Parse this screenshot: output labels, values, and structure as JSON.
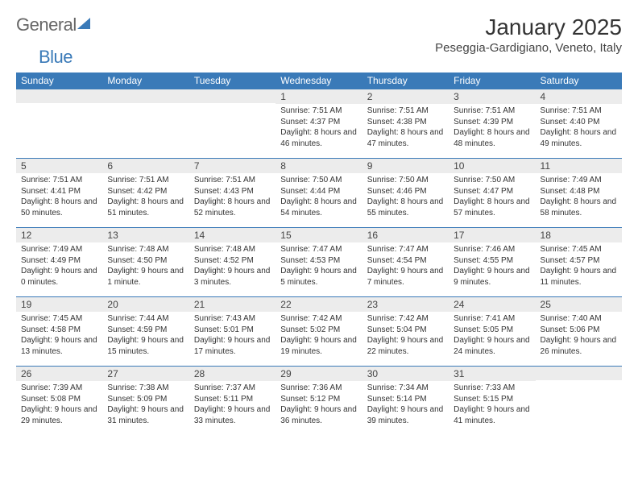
{
  "brand": {
    "part1": "General",
    "part2": "Blue"
  },
  "title": "January 2025",
  "location": "Peseggia-Gardigiano, Veneto, Italy",
  "colors": {
    "accent": "#3a7ab8",
    "row_shade": "#ececec",
    "text": "#333333",
    "background": "#ffffff"
  },
  "typography": {
    "title_fontsize": 28,
    "location_fontsize": 15,
    "header_fontsize": 12,
    "daynum_fontsize": 12,
    "body_fontsize": 10
  },
  "calendar": {
    "type": "table",
    "columns": [
      "Sunday",
      "Monday",
      "Tuesday",
      "Wednesday",
      "Thursday",
      "Friday",
      "Saturday"
    ],
    "weeks": [
      [
        null,
        null,
        null,
        {
          "n": "1",
          "sr": "7:51 AM",
          "ss": "4:37 PM",
          "dl": "8 hours and 46 minutes."
        },
        {
          "n": "2",
          "sr": "7:51 AM",
          "ss": "4:38 PM",
          "dl": "8 hours and 47 minutes."
        },
        {
          "n": "3",
          "sr": "7:51 AM",
          "ss": "4:39 PM",
          "dl": "8 hours and 48 minutes."
        },
        {
          "n": "4",
          "sr": "7:51 AM",
          "ss": "4:40 PM",
          "dl": "8 hours and 49 minutes."
        }
      ],
      [
        {
          "n": "5",
          "sr": "7:51 AM",
          "ss": "4:41 PM",
          "dl": "8 hours and 50 minutes."
        },
        {
          "n": "6",
          "sr": "7:51 AM",
          "ss": "4:42 PM",
          "dl": "8 hours and 51 minutes."
        },
        {
          "n": "7",
          "sr": "7:51 AM",
          "ss": "4:43 PM",
          "dl": "8 hours and 52 minutes."
        },
        {
          "n": "8",
          "sr": "7:50 AM",
          "ss": "4:44 PM",
          "dl": "8 hours and 54 minutes."
        },
        {
          "n": "9",
          "sr": "7:50 AM",
          "ss": "4:46 PM",
          "dl": "8 hours and 55 minutes."
        },
        {
          "n": "10",
          "sr": "7:50 AM",
          "ss": "4:47 PM",
          "dl": "8 hours and 57 minutes."
        },
        {
          "n": "11",
          "sr": "7:49 AM",
          "ss": "4:48 PM",
          "dl": "8 hours and 58 minutes."
        }
      ],
      [
        {
          "n": "12",
          "sr": "7:49 AM",
          "ss": "4:49 PM",
          "dl": "9 hours and 0 minutes."
        },
        {
          "n": "13",
          "sr": "7:48 AM",
          "ss": "4:50 PM",
          "dl": "9 hours and 1 minute."
        },
        {
          "n": "14",
          "sr": "7:48 AM",
          "ss": "4:52 PM",
          "dl": "9 hours and 3 minutes."
        },
        {
          "n": "15",
          "sr": "7:47 AM",
          "ss": "4:53 PM",
          "dl": "9 hours and 5 minutes."
        },
        {
          "n": "16",
          "sr": "7:47 AM",
          "ss": "4:54 PM",
          "dl": "9 hours and 7 minutes."
        },
        {
          "n": "17",
          "sr": "7:46 AM",
          "ss": "4:55 PM",
          "dl": "9 hours and 9 minutes."
        },
        {
          "n": "18",
          "sr": "7:45 AM",
          "ss": "4:57 PM",
          "dl": "9 hours and 11 minutes."
        }
      ],
      [
        {
          "n": "19",
          "sr": "7:45 AM",
          "ss": "4:58 PM",
          "dl": "9 hours and 13 minutes."
        },
        {
          "n": "20",
          "sr": "7:44 AM",
          "ss": "4:59 PM",
          "dl": "9 hours and 15 minutes."
        },
        {
          "n": "21",
          "sr": "7:43 AM",
          "ss": "5:01 PM",
          "dl": "9 hours and 17 minutes."
        },
        {
          "n": "22",
          "sr": "7:42 AM",
          "ss": "5:02 PM",
          "dl": "9 hours and 19 minutes."
        },
        {
          "n": "23",
          "sr": "7:42 AM",
          "ss": "5:04 PM",
          "dl": "9 hours and 22 minutes."
        },
        {
          "n": "24",
          "sr": "7:41 AM",
          "ss": "5:05 PM",
          "dl": "9 hours and 24 minutes."
        },
        {
          "n": "25",
          "sr": "7:40 AM",
          "ss": "5:06 PM",
          "dl": "9 hours and 26 minutes."
        }
      ],
      [
        {
          "n": "26",
          "sr": "7:39 AM",
          "ss": "5:08 PM",
          "dl": "9 hours and 29 minutes."
        },
        {
          "n": "27",
          "sr": "7:38 AM",
          "ss": "5:09 PM",
          "dl": "9 hours and 31 minutes."
        },
        {
          "n": "28",
          "sr": "7:37 AM",
          "ss": "5:11 PM",
          "dl": "9 hours and 33 minutes."
        },
        {
          "n": "29",
          "sr": "7:36 AM",
          "ss": "5:12 PM",
          "dl": "9 hours and 36 minutes."
        },
        {
          "n": "30",
          "sr": "7:34 AM",
          "ss": "5:14 PM",
          "dl": "9 hours and 39 minutes."
        },
        {
          "n": "31",
          "sr": "7:33 AM",
          "ss": "5:15 PM",
          "dl": "9 hours and 41 minutes."
        },
        null
      ]
    ],
    "labels": {
      "sunrise": "Sunrise:",
      "sunset": "Sunset:",
      "daylight": "Daylight:"
    }
  }
}
